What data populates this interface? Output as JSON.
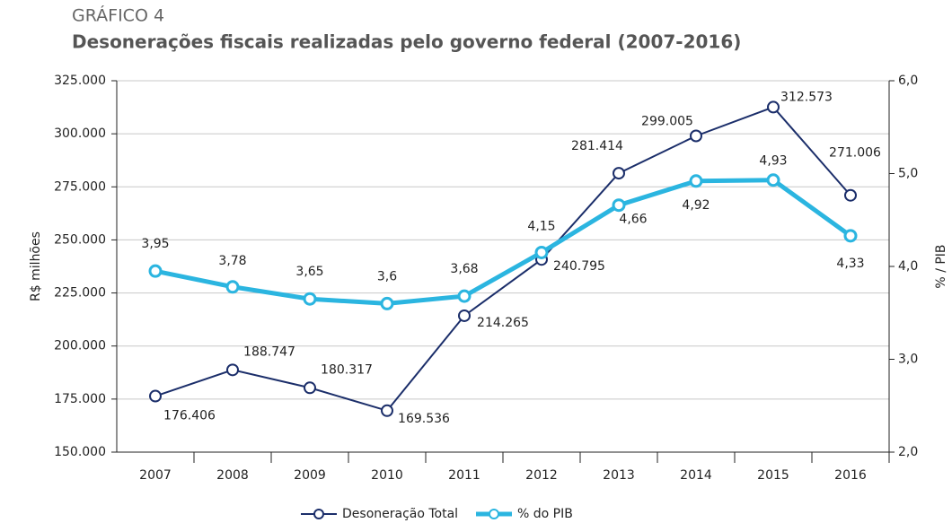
{
  "chart_data": {
    "type": "line",
    "title": "GRÁFICO 4",
    "subtitle": "Desonerações fiscais realizadas pelo governo federal (2007-2016)",
    "ylabel": "R$ milhões",
    "y2label": "% / PIB",
    "categories": [
      "2007",
      "2008",
      "2009",
      "2010",
      "2011",
      "2012",
      "2013",
      "2014",
      "2015",
      "2016"
    ],
    "series": [
      {
        "name": "Desoneração Total",
        "color": "#1b2e6a",
        "axis": "y",
        "values": [
          176406,
          188747,
          180317,
          169536,
          214265,
          240795,
          281414,
          299005,
          312573,
          271006
        ],
        "value_labels": [
          "176.406",
          "188.747",
          "180.317",
          "169.536",
          "214.265",
          "240.795",
          "281.414",
          "299.005",
          "312.573",
          "271.006"
        ]
      },
      {
        "name": "% do PIB",
        "color": "#2bb5e0",
        "axis": "y2",
        "values": [
          3.95,
          3.78,
          3.65,
          3.6,
          3.68,
          4.15,
          4.66,
          4.92,
          4.93,
          4.33
        ],
        "value_labels": [
          "3,95",
          "3,78",
          "3,65",
          "3,6",
          "3,68",
          "4,15",
          "4,66",
          "4,92",
          "4,93",
          "4,33"
        ]
      }
    ],
    "ylim": [
      150000,
      325000
    ],
    "yticks": [
      {
        "value": 150000,
        "label": "150.000"
      },
      {
        "value": 175000,
        "label": "175.000"
      },
      {
        "value": 200000,
        "label": "200.000"
      },
      {
        "value": 225000,
        "label": "225.000"
      },
      {
        "value": 250000,
        "label": "250.000"
      },
      {
        "value": 275000,
        "label": "275.000"
      },
      {
        "value": 300000,
        "label": "300.000"
      },
      {
        "value": 325000,
        "label": "325.000"
      }
    ],
    "y2lim": [
      2,
      6
    ],
    "y2ticks": [
      {
        "value": 2,
        "label": "2,0"
      },
      {
        "value": 3,
        "label": "3,0"
      },
      {
        "value": 4,
        "label": "4,0"
      },
      {
        "value": 5,
        "label": "5,0"
      },
      {
        "value": 6,
        "label": "6,0"
      }
    ],
    "grid": true,
    "legend": "bottom"
  }
}
